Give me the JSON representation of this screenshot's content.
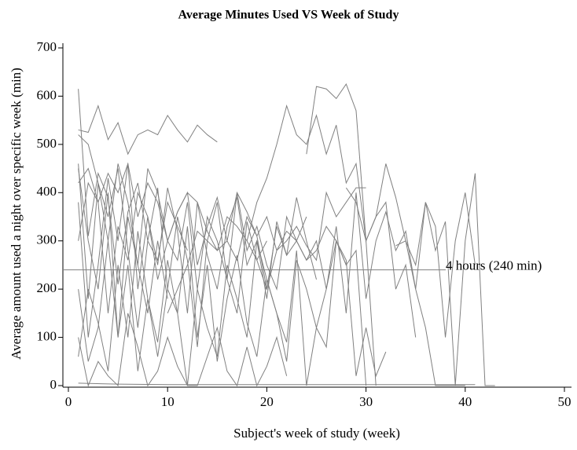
{
  "chart_data": {
    "type": "line",
    "title": "Average Minutes Used VS Week of Study",
    "xlabel": "Subject's week of study (week)",
    "ylabel": "Average amount used a night over specific week (min)",
    "xlim": [
      0,
      50
    ],
    "ylim": [
      0,
      700
    ],
    "xticks": [
      0,
      10,
      20,
      30,
      40,
      50
    ],
    "yticks": [
      0,
      100,
      200,
      300,
      400,
      500,
      600,
      700
    ],
    "color": "#808080",
    "reference_line": {
      "value": 240,
      "label": "4 hours (240 min)"
    },
    "series": [
      {
        "x": [
          1,
          2,
          3,
          4,
          5,
          6,
          7,
          8,
          9,
          10,
          11,
          12,
          13,
          14,
          15
        ],
        "values": [
          530,
          525,
          580,
          510,
          545,
          480,
          520,
          530,
          520,
          560,
          530,
          505,
          540,
          520,
          505
        ]
      },
      {
        "x": [
          1,
          2,
          3,
          4,
          5,
          6,
          7,
          8,
          9,
          10,
          11,
          12
        ],
        "values": [
          615,
          310,
          440,
          390,
          210,
          360,
          420,
          300,
          260,
          380,
          330,
          280
        ]
      },
      {
        "x": [
          1,
          2,
          3,
          4,
          5,
          6,
          7,
          8,
          9,
          10,
          11,
          12,
          13,
          14,
          15,
          16,
          17,
          18,
          19,
          20
        ],
        "values": [
          460,
          180,
          420,
          350,
          450,
          280,
          120,
          300,
          410,
          200,
          350,
          260,
          80,
          300,
          380,
          220,
          150,
          340,
          260,
          300
        ]
      },
      {
        "x": [
          1,
          2,
          3,
          4,
          5,
          6,
          7,
          8,
          9,
          10,
          11,
          12,
          13,
          14,
          15,
          16,
          17,
          18,
          19,
          20,
          21,
          22,
          23,
          24,
          25
        ],
        "values": [
          380,
          100,
          250,
          430,
          300,
          460,
          200,
          350,
          250,
          410,
          320,
          150,
          380,
          270,
          200,
          330,
          390,
          250,
          300,
          180,
          340,
          270,
          390,
          300,
          220
        ]
      },
      {
        "x": [
          1,
          2,
          3,
          4,
          5,
          6,
          7,
          8,
          9,
          10,
          11,
          12,
          13,
          14,
          15,
          16,
          17,
          18,
          19,
          20,
          21,
          22,
          23,
          24,
          25,
          26,
          27,
          28,
          29,
          30
        ],
        "values": [
          300,
          420,
          380,
          150,
          330,
          260,
          400,
          350,
          220,
          300,
          360,
          400,
          380,
          320,
          280,
          300,
          400,
          360,
          310,
          350,
          280,
          300,
          330,
          290,
          260,
          400,
          350,
          380,
          410,
          410
        ]
      },
      {
        "x": [
          1,
          2,
          3,
          4,
          5,
          6,
          7,
          8,
          9,
          10,
          11,
          12,
          13,
          14,
          15,
          16,
          17,
          18,
          19,
          20,
          21,
          22,
          23,
          24,
          25,
          26,
          27,
          28,
          29,
          30,
          31,
          32
        ],
        "values": [
          200,
          50,
          120,
          300,
          100,
          250,
          30,
          180,
          90,
          260,
          150,
          0,
          200,
          120,
          60,
          250,
          180,
          100,
          300,
          220,
          150,
          50,
          260,
          200,
          120,
          80,
          300,
          260,
          20,
          120,
          20,
          70
        ]
      },
      {
        "x": [
          1,
          2,
          3,
          4,
          5,
          6,
          7,
          8,
          9,
          10,
          11,
          12,
          13,
          14,
          15,
          16,
          17,
          18,
          19,
          20,
          21,
          22
        ],
        "values": [
          100,
          0,
          50,
          20,
          0,
          150,
          80,
          0,
          30,
          100,
          40,
          0,
          0,
          60,
          120,
          30,
          0,
          80,
          0,
          40,
          100,
          20
        ]
      },
      {
        "x": [
          18,
          19,
          20,
          21,
          22,
          23,
          24,
          25,
          26,
          27,
          28,
          29,
          30,
          31,
          32,
          33,
          34,
          35
        ],
        "values": [
          300,
          380,
          430,
          500,
          580,
          520,
          500,
          560,
          480,
          540,
          420,
          460,
          300,
          350,
          380,
          200,
          250,
          100
        ]
      },
      {
        "x": [
          24,
          25,
          26,
          27,
          28,
          29,
          30,
          31
        ],
        "values": [
          480,
          620,
          615,
          595,
          625,
          570,
          300,
          0
        ]
      },
      {
        "x": [
          1,
          5,
          10,
          20,
          30,
          41
        ],
        "values": [
          5,
          3,
          2,
          2,
          2,
          2
        ]
      },
      {
        "x": [
          28,
          29,
          30,
          31,
          32,
          33,
          34,
          35,
          36,
          37,
          38,
          39,
          40,
          41
        ],
        "values": [
          410,
          380,
          300,
          350,
          460,
          390,
          300,
          200,
          380,
          330,
          100,
          300,
          400,
          250
        ]
      },
      {
        "x": [
          33,
          34,
          35,
          36,
          37,
          38,
          39,
          40,
          41,
          42,
          43
        ],
        "values": [
          290,
          300,
          250,
          380,
          280,
          340,
          0,
          300,
          440,
          0,
          0
        ]
      },
      {
        "x": [
          26,
          27,
          28,
          29,
          30,
          31,
          32,
          33,
          34,
          35,
          36,
          37,
          38,
          39,
          40
        ],
        "values": [
          200,
          330,
          150,
          400,
          180,
          300,
          360,
          280,
          320,
          200,
          120,
          0,
          0,
          0,
          0
        ]
      },
      {
        "x": [
          1,
          2,
          3,
          4,
          5,
          6,
          7,
          8,
          9,
          10,
          11,
          12,
          13,
          14,
          15,
          16,
          17,
          18,
          19,
          20,
          21,
          22,
          23,
          24,
          25,
          26,
          27,
          28
        ],
        "values": [
          520,
          500,
          420,
          300,
          460,
          380,
          250,
          450,
          400,
          300,
          260,
          380,
          200,
          350,
          300,
          220,
          400,
          280,
          330,
          250,
          200,
          350,
          300,
          260,
          300,
          200,
          300,
          250
        ]
      },
      {
        "x": [
          1,
          2,
          3,
          4,
          5,
          6,
          7,
          8,
          9,
          10,
          11,
          12,
          13,
          14,
          15,
          16,
          17,
          18,
          19,
          20,
          21,
          22,
          23,
          24,
          25,
          26
        ],
        "values": [
          60,
          200,
          130,
          30,
          250,
          100,
          320,
          180,
          60,
          200,
          150,
          330,
          100,
          250,
          50,
          180,
          270,
          130,
          60,
          220,
          150,
          90,
          280,
          0,
          120,
          200
        ]
      },
      {
        "x": [
          1,
          2,
          3,
          4,
          5,
          6,
          7,
          8,
          9,
          10,
          11,
          12,
          13,
          14,
          15,
          16,
          17,
          18,
          19,
          20,
          21,
          22,
          23,
          24
        ],
        "values": [
          420,
          450,
          380,
          440,
          400,
          460,
          350,
          420,
          380,
          300,
          360,
          400,
          250,
          330,
          390,
          300,
          260,
          350,
          310,
          200,
          330,
          270,
          300,
          350
        ]
      },
      {
        "x": [
          1,
          2,
          3,
          4,
          5,
          6,
          7,
          8,
          9,
          10
        ],
        "values": [
          450,
          300,
          200,
          400,
          100,
          350,
          250,
          150,
          300,
          180
        ]
      },
      {
        "x": [
          10,
          11,
          12,
          13,
          14,
          15,
          16,
          17,
          18,
          19,
          20,
          21,
          22,
          23,
          24,
          25,
          26,
          27,
          28,
          29,
          30
        ],
        "values": [
          150,
          200,
          250,
          320,
          300,
          280,
          350,
          330,
          300,
          260,
          200,
          280,
          320,
          300,
          260,
          280,
          330,
          300,
          250,
          280,
          0
        ]
      }
    ]
  }
}
